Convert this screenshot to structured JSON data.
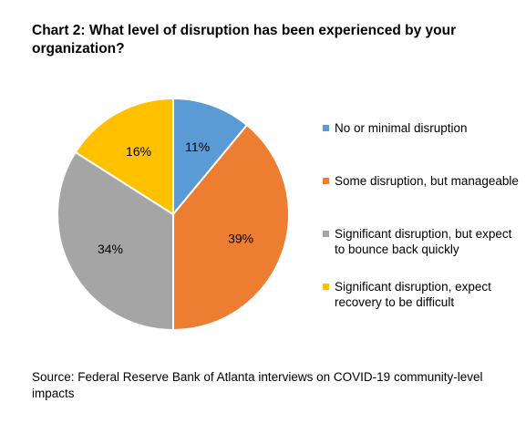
{
  "chart_data": {
    "type": "pie",
    "title": "Chart 2: What level of disruption has been experienced by your organization?",
    "slices": [
      {
        "label": "No or minimal disruption",
        "value": 11,
        "value_label": "11%",
        "color": "#5b9bd5"
      },
      {
        "label": "Some disruption, but manageable",
        "value": 39,
        "value_label": "39%",
        "color": "#ed7d31"
      },
      {
        "label": "Significant disruption, but expect to bounce back quickly",
        "value": 34,
        "value_label": "34%",
        "color": "#a5a5a5"
      },
      {
        "label": "Significant disruption, expect recovery to be difficult",
        "value": 16,
        "value_label": "16%",
        "color": "#ffc000"
      }
    ],
    "legend_position": "right",
    "source": "Source: Federal Reserve Bank of Atlanta interviews on COVID-19 community-level impacts"
  }
}
